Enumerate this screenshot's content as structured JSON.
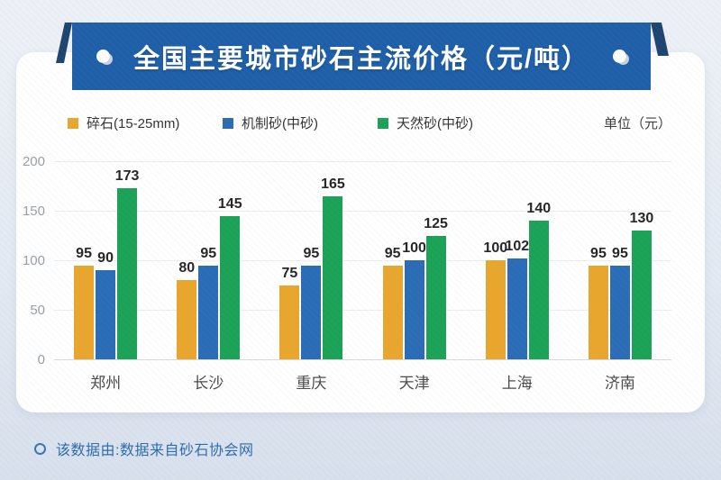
{
  "banner": {
    "title": "全国主要城市砂石主流价格（元/吨）",
    "bg_color": "#1e5fa8",
    "fold_color": "#1f4470"
  },
  "legend": {
    "items": [
      {
        "label": "碎石(15-25mm)",
        "color": "#e9a62c"
      },
      {
        "label": "机制砂(中砂)",
        "color": "#2a6cb5"
      },
      {
        "label": "天然砂(中砂)",
        "color": "#1ba256"
      }
    ],
    "unit_label": "单位（元）"
  },
  "chart_data": {
    "type": "bar",
    "title": "全国主要城市砂石主流价格（元/吨）",
    "categories": [
      "郑州",
      "长沙",
      "重庆",
      "天津",
      "上海",
      "济南"
    ],
    "series": [
      {
        "name": "碎石(15-25mm)",
        "color": "#e9a62c",
        "values": [
          95,
          80,
          75,
          95,
          100,
          95
        ]
      },
      {
        "name": "机制砂(中砂)",
        "color": "#2a6cb5",
        "values": [
          90,
          95,
          95,
          100,
          102,
          95
        ]
      },
      {
        "name": "天然砂(中砂)",
        "color": "#1ba256",
        "values": [
          173,
          145,
          165,
          125,
          140,
          130
        ]
      }
    ],
    "ylabel": "单位（元）",
    "ylim": [
      0,
      200
    ],
    "ytick_step": 50,
    "yticks": [
      0,
      50,
      100,
      150,
      200
    ],
    "grid": true,
    "legend_position": "top",
    "value_labels": true
  },
  "footer": {
    "text": "该数据由:数据来自砂石协会网"
  }
}
